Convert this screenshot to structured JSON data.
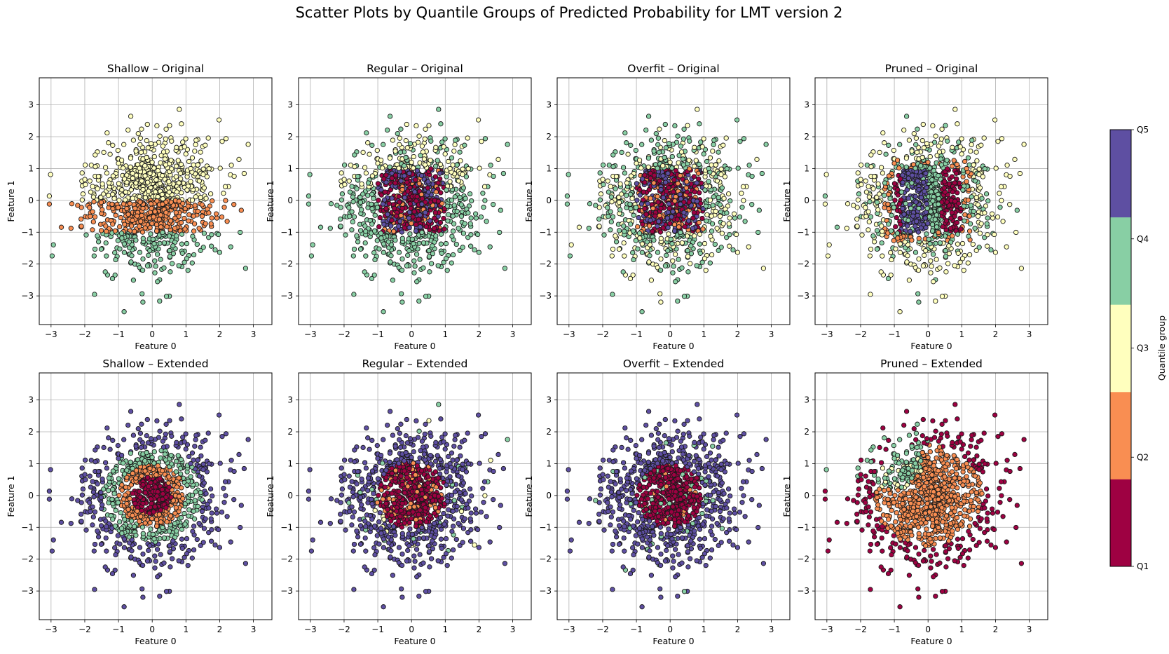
{
  "figure": {
    "title": "Scatter Plots by Quantile Groups of Predicted Probability for LMT version 2"
  },
  "colorbar": {
    "label": "Quantile group",
    "ticks": [
      "Q1",
      "Q2",
      "Q3",
      "Q4",
      "Q5"
    ],
    "colors": [
      "#9e0142",
      "#f98e52",
      "#ffffbe",
      "#88cfa4",
      "#5e4fa2"
    ]
  },
  "chart_data": [
    {
      "type": "scatter",
      "title": "Shallow – Original",
      "xlabel": "Feature 0",
      "ylabel": "Feature 1",
      "xlim": [
        -3.35,
        3.55
      ],
      "ylim": [
        -3.9,
        3.85
      ],
      "xticks": [
        -3,
        -2,
        -1,
        0,
        1,
        2,
        3
      ],
      "yticks": [
        -3,
        -2,
        -1,
        0,
        1,
        2,
        3
      ],
      "grid": true,
      "marker_color": "quantile group",
      "n_points": 1000,
      "pattern": "horizontal bands: Q3 for Feature 1 > 0, Q2 for -1 < Feature 1 < 0, Q4 for Feature 1 < -1"
    },
    {
      "type": "scatter",
      "title": "Regular – Original",
      "xlabel": "Feature 0",
      "ylabel": "Feature 1",
      "xlim": [
        -3.35,
        3.55
      ],
      "ylim": [
        -3.9,
        3.85
      ],
      "xticks": [
        -3,
        -2,
        -1,
        0,
        1,
        2,
        3
      ],
      "yticks": [
        -3,
        -2,
        -1,
        0,
        1,
        2,
        3
      ],
      "grid": true,
      "marker_color": "quantile group",
      "n_points": 1000,
      "pattern": "mixed Q1/Q5/Q2 inside square |x|<1, |y|<1; Q4 around it; Q3 in the upper area"
    },
    {
      "type": "scatter",
      "title": "Overfit – Original",
      "xlabel": "Feature 0",
      "ylabel": "Feature 1",
      "xlim": [
        -3.35,
        3.55
      ],
      "ylim": [
        -3.9,
        3.85
      ],
      "xticks": [
        -3,
        -2,
        -1,
        0,
        1,
        2,
        3
      ],
      "yticks": [
        -3,
        -2,
        -1,
        0,
        1,
        2,
        3
      ],
      "grid": true,
      "marker_color": "quantile group",
      "n_points": 1000,
      "pattern": "mixed Q1/Q5/Q2 inside square; Q4 and Q3 mixed outside"
    },
    {
      "type": "scatter",
      "title": "Pruned – Original",
      "xlabel": "Feature 0",
      "ylabel": "Feature 1",
      "xlim": [
        -3.35,
        3.55
      ],
      "ylim": [
        -3.9,
        3.85
      ],
      "xticks": [
        -3,
        -2,
        -1,
        0,
        1,
        2,
        3
      ],
      "yticks": [
        -3,
        -2,
        -1,
        0,
        1,
        2,
        3
      ],
      "grid": true,
      "marker_color": "quantile group",
      "n_points": 1000,
      "pattern": "inside square: Q1 for x<-0.8, Q5 for -0.8<x<0, Q4 for 0<x<0.4, Q1 for x>0.4; Q3 outside, Q2/Q4 band around square"
    },
    {
      "type": "scatter",
      "title": "Shallow – Extended",
      "xlabel": "Feature 0",
      "ylabel": "Feature 1",
      "xlim": [
        -3.35,
        3.55
      ],
      "ylim": [
        -3.9,
        3.85
      ],
      "xticks": [
        -3,
        -2,
        -1,
        0,
        1,
        2,
        3
      ],
      "yticks": [
        -3,
        -2,
        -1,
        0,
        1,
        2,
        3
      ],
      "grid": true,
      "marker_color": "quantile group",
      "n_points": 1000,
      "pattern": "concentric rings by radius: Q1 r<0.6, Q2 r<1.0, Q4 r<1.5, Q5 beyond"
    },
    {
      "type": "scatter",
      "title": "Regular – Extended",
      "xlabel": "Feature 0",
      "ylabel": "Feature 1",
      "xlim": [
        -3.35,
        3.55
      ],
      "ylim": [
        -3.9,
        3.85
      ],
      "xticks": [
        -3,
        -2,
        -1,
        0,
        1,
        2,
        3
      ],
      "yticks": [
        -3,
        -2,
        -1,
        0,
        1,
        2,
        3
      ],
      "grid": true,
      "marker_color": "quantile group",
      "n_points": 1000,
      "pattern": "Q1 core with Q2 specks inside radius 1.05, Q5 outside with a few Q4/Q3"
    },
    {
      "type": "scatter",
      "title": "Overfit – Extended",
      "xlabel": "Feature 0",
      "ylabel": "Feature 1",
      "xlim": [
        -3.35,
        3.55
      ],
      "ylim": [
        -3.9,
        3.85
      ],
      "xticks": [
        -3,
        -2,
        -1,
        0,
        1,
        2,
        3
      ],
      "yticks": [
        -3,
        -2,
        -1,
        0,
        1,
        2,
        3
      ],
      "grid": true,
      "marker_color": "quantile group",
      "n_points": 1000,
      "pattern": "Q1 inside radius 1.0 with a few Q2/Q4, Q5 outside"
    },
    {
      "type": "scatter",
      "title": "Pruned – Extended",
      "xlabel": "Feature 0",
      "ylabel": "Feature 1",
      "xlim": [
        -3.35,
        3.55
      ],
      "ylim": [
        -3.9,
        3.85
      ],
      "xticks": [
        -3,
        -2,
        -1,
        0,
        1,
        2,
        3
      ],
      "yticks": [
        -3,
        -2,
        -1,
        0,
        1,
        2,
        3
      ],
      "grid": true,
      "marker_color": "quantile group",
      "n_points": 1000,
      "pattern": "Q2 core to radius 1.6 (upper-left part Q4/Q3), Q1 on the outer ring"
    }
  ]
}
